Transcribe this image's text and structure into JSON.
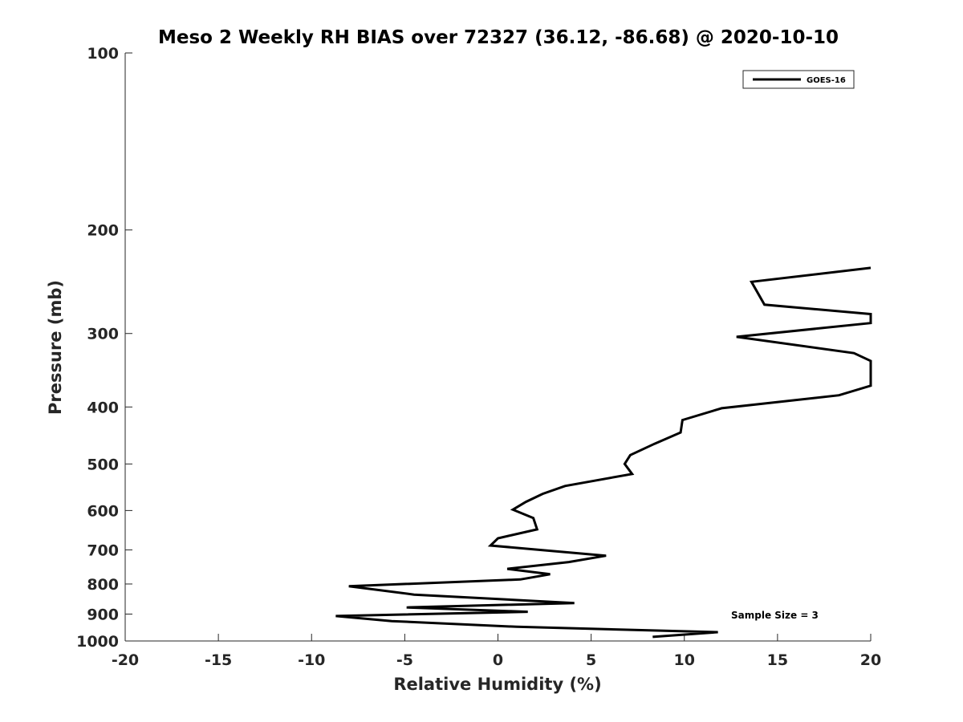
{
  "chart_data": {
    "type": "line",
    "title": "Meso 2 Weekly RH BIAS over 72327 (36.12, -86.68) @ 2020-10-10",
    "xlabel": "Relative Humidity (%)",
    "ylabel": "Pressure (mb)",
    "xlim": [
      -20,
      20
    ],
    "ylim": [
      100,
      1000
    ],
    "yscale": "log",
    "y_reversed": true,
    "xticks": [
      -20,
      -15,
      -10,
      -5,
      0,
      5,
      10,
      15,
      20
    ],
    "xtick_labels": [
      "-20",
      "-15",
      "-10",
      "-5",
      "0",
      "5",
      "10",
      "15",
      "20"
    ],
    "yticks": [
      100,
      200,
      300,
      400,
      500,
      600,
      700,
      800,
      900,
      1000
    ],
    "ytick_labels": [
      "100",
      "200",
      "300",
      "400",
      "500",
      "600",
      "700",
      "800",
      "900",
      "1000"
    ],
    "grid": false,
    "legend_position": "top-right",
    "line_color": "#000000",
    "annotation": "Sample Size = 3",
    "series": [
      {
        "name": "GOES-16",
        "x": [
          20,
          13.6,
          14.3,
          20,
          20,
          12.8,
          19.1,
          20,
          20,
          18.3,
          12.0,
          9.9,
          9.8,
          8.4,
          7.1,
          6.8,
          7.2,
          3.6,
          2.4,
          1.5,
          0.8,
          1.9,
          2.1,
          0,
          -0.4,
          5.8,
          3.8,
          0.5,
          2.8,
          1.2,
          -8.0,
          -4.5,
          4.1,
          -4.9,
          1.6,
          -8.7,
          -5.7,
          1.0,
          11.8,
          8.3
        ],
        "y": [
          232,
          245,
          268,
          278,
          288,
          304,
          324,
          334,
          368,
          382,
          402,
          421,
          442,
          462,
          483,
          500,
          520,
          545,
          562,
          580,
          598,
          618,
          646,
          669,
          688,
          716,
          734,
          754,
          770,
          786,
          807,
          834,
          862,
          877,
          892,
          907,
          925,
          946,
          966,
          984
        ]
      }
    ]
  }
}
